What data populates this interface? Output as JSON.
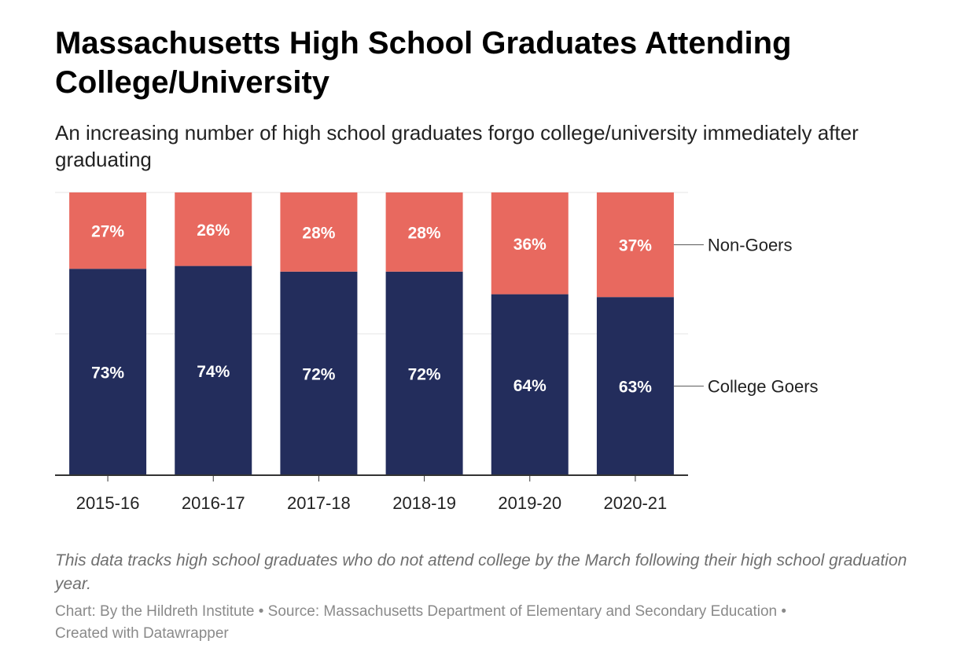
{
  "header": {
    "title": "Massachusetts High School Graduates Attending College/University",
    "subtitle": "An increasing number of high school graduates forgo college/university immediately after graduating"
  },
  "footer": {
    "notes": "This data tracks high school graduates who do not attend college by the March following their high school graduation year.",
    "credit_chart": "Chart: By the Hildreth Institute",
    "separator": "•",
    "credit_source": "Source: Massachusetts Department of Elementary and Secondary Education",
    "credit_tool": "Created with Datawrapper"
  },
  "colors": {
    "college_goers": "#232d5c",
    "non_goers": "#e8695f",
    "bar_label": "#ffffff",
    "axis": "#333333",
    "grid": "#e6e6e6"
  },
  "chart_data": {
    "type": "bar",
    "stacked": true,
    "percent_stacked": true,
    "categories": [
      "2015-16",
      "2016-17",
      "2017-18",
      "2018-19",
      "2019-20",
      "2020-21"
    ],
    "series": [
      {
        "name": "College Goers",
        "values": [
          73,
          74,
          72,
          72,
          64,
          63
        ],
        "labels": [
          "73%",
          "74%",
          "72%",
          "72%",
          "64%",
          "63%"
        ]
      },
      {
        "name": "Non-Goers",
        "values": [
          27,
          26,
          28,
          28,
          36,
          37
        ],
        "labels": [
          "27%",
          "26%",
          "28%",
          "28%",
          "36%",
          "37%"
        ]
      }
    ],
    "ylim": [
      0,
      100
    ],
    "grid": true,
    "legend": "direct labels at right"
  }
}
